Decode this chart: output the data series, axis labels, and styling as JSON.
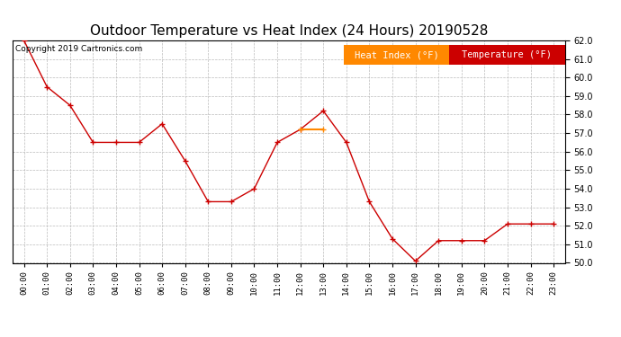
{
  "title": "Outdoor Temperature vs Heat Index (24 Hours) 20190528",
  "copyright": "Copyright 2019 Cartronics.com",
  "x_labels": [
    "00:00",
    "01:00",
    "02:00",
    "03:00",
    "04:00",
    "05:00",
    "06:00",
    "07:00",
    "08:00",
    "09:00",
    "10:00",
    "11:00",
    "12:00",
    "13:00",
    "14:00",
    "15:00",
    "16:00",
    "17:00",
    "18:00",
    "19:00",
    "20:00",
    "21:00",
    "22:00",
    "23:00"
  ],
  "temperature": [
    62.0,
    59.5,
    58.5,
    56.5,
    56.5,
    56.5,
    57.5,
    55.5,
    53.3,
    53.3,
    54.0,
    56.5,
    57.2,
    58.2,
    56.5,
    53.3,
    51.3,
    50.1,
    51.2,
    51.2,
    51.2,
    52.1,
    52.1,
    52.1
  ],
  "heat_index": [
    null,
    null,
    null,
    null,
    null,
    null,
    null,
    null,
    null,
    null,
    null,
    null,
    57.2,
    57.2,
    null,
    null,
    null,
    null,
    null,
    null,
    null,
    null,
    null,
    null
  ],
  "temp_color": "#cc0000",
  "heat_index_color": "#ff8800",
  "heat_index_legend_bg": "#ff8800",
  "temp_legend_bg": "#cc0000",
  "ylim_min": 50.0,
  "ylim_max": 62.0,
  "yticks": [
    50.0,
    51.0,
    52.0,
    53.0,
    54.0,
    55.0,
    56.0,
    57.0,
    58.0,
    59.0,
    60.0,
    61.0,
    62.0
  ],
  "background_color": "#ffffff",
  "grid_color": "#bbbbbb",
  "title_fontsize": 11,
  "copyright_fontsize": 6.5,
  "legend_fontsize": 7.5,
  "legend_label_hi": "Heat Index (°F)",
  "legend_label_temp": "Temperature (°F)"
}
